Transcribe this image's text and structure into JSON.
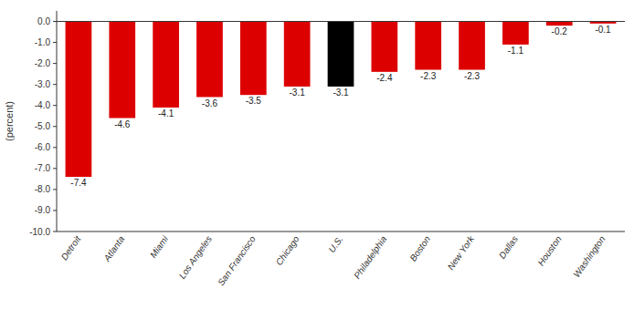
{
  "chart_data": {
    "type": "bar",
    "categories": [
      "Detroit",
      "Atlanta",
      "Miami",
      "Los Angeles",
      "San Francisco",
      "Chicago",
      "U.S.",
      "Philadelphia",
      "Boston",
      "New York",
      "Dallas",
      "Houston",
      "Washington"
    ],
    "values": [
      -7.4,
      -4.6,
      -4.1,
      -3.6,
      -3.5,
      -3.1,
      -3.1,
      -2.4,
      -2.3,
      -2.3,
      -1.1,
      -0.2,
      -0.1
    ],
    "colors": [
      "#dd0000",
      "#dd0000",
      "#dd0000",
      "#dd0000",
      "#dd0000",
      "#dd0000",
      "#000000",
      "#dd0000",
      "#dd0000",
      "#dd0000",
      "#dd0000",
      "#dd0000",
      "#dd0000"
    ],
    "ylabel": "(percent)",
    "ylim": [
      -10.0,
      0.5
    ],
    "yticks": [
      {
        "value": 0.0,
        "label": "0.0"
      },
      {
        "value": -1.0,
        "label": "-1.0"
      },
      {
        "value": -2.0,
        "label": "-2.0"
      },
      {
        "value": -3.0,
        "label": "-3.0"
      },
      {
        "value": -4.0,
        "label": "-4.0"
      },
      {
        "value": -5.0,
        "label": "-5.0"
      },
      {
        "value": -6.0,
        "label": "-6.0"
      },
      {
        "value": -7.0,
        "label": "-7.0"
      },
      {
        "value": -8.0,
        "label": "-8.0"
      },
      {
        "value": -9.0,
        "label": "-9.0"
      },
      {
        "value": -10.0,
        "label": "-10.0"
      }
    ],
    "data_labels": true,
    "grid": false
  }
}
